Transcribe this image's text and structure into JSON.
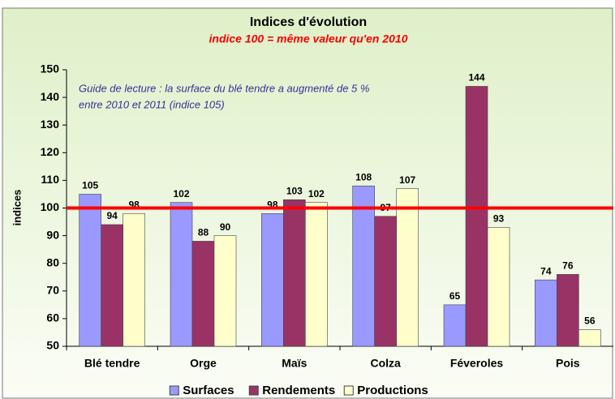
{
  "chart_data": {
    "type": "bar",
    "title": "Indices d'évolution",
    "subtitle": "indice 100 = même valeur qu'en 2010",
    "annotation": [
      "Guide de lecture : la surface du blé tendre a augmenté de 5 %",
      "entre 2010 et 2011 (indice 105)"
    ],
    "y_label": "indices",
    "categories": [
      "Blé tendre",
      "Orge",
      "Maïs",
      "Colza",
      "Féveroles",
      "Pois"
    ],
    "series": [
      {
        "name": "Surfaces",
        "color": "#9999ff",
        "values": [
          105,
          102,
          98,
          108,
          65,
          74
        ]
      },
      {
        "name": "Rendements",
        "color": "#993366",
        "values": [
          94,
          88,
          103,
          97,
          144,
          76
        ]
      },
      {
        "name": "Productions",
        "color": "#ffffcc",
        "values": [
          98,
          90,
          102,
          107,
          93,
          56
        ]
      }
    ],
    "reference_line": {
      "value": 100,
      "color": "#ff0000"
    },
    "ylim": [
      50,
      150
    ],
    "yticks": [
      50,
      60,
      70,
      80,
      90,
      100,
      110,
      120,
      130,
      140,
      150
    ],
    "grid": false,
    "legend": "bottom"
  }
}
